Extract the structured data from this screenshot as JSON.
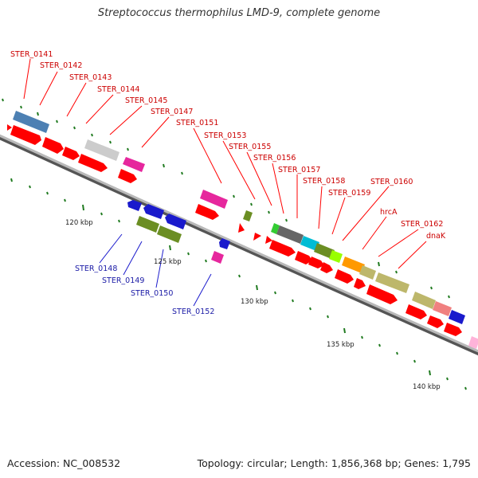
{
  "title": "Streptococcus thermophilus LMD-9, complete genome",
  "footer": {
    "accession": "Accession: NC_008532",
    "summary": "Topology: circular; Length: 1,856,368 bp; Genes: 1,795"
  },
  "ticks": [
    {
      "label": "120 kbp"
    },
    {
      "label": "125 kbp"
    },
    {
      "label": "130 kbp"
    },
    {
      "label": "135 kbp"
    },
    {
      "label": "140 kbp"
    }
  ],
  "top_labels": [
    {
      "text": "STER_0141"
    },
    {
      "text": "STER_0142"
    },
    {
      "text": "STER_0143"
    },
    {
      "text": "STER_0144"
    },
    {
      "text": "STER_0145"
    },
    {
      "text": "STER_0147"
    },
    {
      "text": "STER_0151"
    },
    {
      "text": "STER_0153"
    },
    {
      "text": "STER_0155"
    },
    {
      "text": "STER_0156"
    },
    {
      "text": "STER_0157"
    },
    {
      "text": "STER_0158"
    },
    {
      "text": "STER_0159"
    },
    {
      "text": "STER_0160"
    },
    {
      "text": "hrcA"
    },
    {
      "text": "STER_0162"
    },
    {
      "text": "dnaK"
    }
  ],
  "bottom_labels": [
    {
      "text": "STER_0148"
    },
    {
      "text": "STER_0149"
    },
    {
      "text": "STER_0150"
    },
    {
      "text": "STER_0152"
    }
  ],
  "colors": {
    "backbone": "#8f8f8f",
    "cds": "#ff0000",
    "label_top": "#cc0000",
    "label_bottom": "#1a1aa6",
    "tick": "#1f7a1f"
  }
}
